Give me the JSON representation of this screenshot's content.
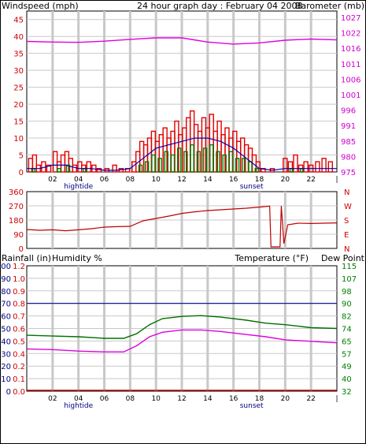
{
  "header": {
    "left_label": "Windspeed (mph)",
    "title": "24 hour graph day : February 04 2008",
    "right_label": "Barometer (mb)"
  },
  "colors": {
    "wind": "#e00000",
    "gust": "#e00000",
    "avg_wind": "#007f00",
    "wind_line": "#0000b0",
    "barometer": "#e000e0",
    "direction": "#c00000",
    "temperature": "#007000",
    "dewpoint": "#e000e0",
    "humidity": "#000090",
    "rain": "#c00000",
    "grid": "#c8c8c8",
    "axis_left_red": "#d00000",
    "axis_right_magenta": "#d000d0",
    "axis_right_green": "#008000"
  },
  "x_axis": {
    "tick_labels": [
      "02",
      "04",
      "06",
      "08",
      "10",
      "12",
      "14",
      "16",
      "18",
      "20",
      "22",
      "|"
    ],
    "annotations": [
      {
        "label": "hightide",
        "hour": 4
      },
      {
        "label": "sunset",
        "hour": 17.4
      }
    ]
  },
  "chart_data": [
    {
      "type": "bar",
      "name": "wind-barometer",
      "left_axis_title": "Windspeed (mph)",
      "right_axis_title": "Barometer (mb)",
      "left_ticks": [
        0,
        5,
        10,
        15,
        20,
        25,
        30,
        35,
        40,
        45
      ],
      "right_ticks": [
        975,
        980,
        985,
        991,
        996,
        1001,
        1006,
        1011,
        1016,
        1022,
        1027
      ],
      "ylim_left": [
        0,
        47.5
      ],
      "ylim_right": [
        975,
        1029
      ],
      "x_range_hours": [
        0,
        24
      ],
      "wind_peaks": [
        {
          "h": 0.3,
          "v": 4
        },
        {
          "h": 0.6,
          "v": 5
        },
        {
          "h": 0.9,
          "v": 2
        },
        {
          "h": 1.3,
          "v": 3
        },
        {
          "h": 1.7,
          "v": 2
        },
        {
          "h": 2.2,
          "v": 6
        },
        {
          "h": 2.5,
          "v": 3
        },
        {
          "h": 2.8,
          "v": 5
        },
        {
          "h": 3.1,
          "v": 6
        },
        {
          "h": 3.4,
          "v": 4
        },
        {
          "h": 3.7,
          "v": 2
        },
        {
          "h": 4.1,
          "v": 3
        },
        {
          "h": 4.4,
          "v": 2
        },
        {
          "h": 4.8,
          "v": 3
        },
        {
          "h": 5.2,
          "v": 2
        },
        {
          "h": 5.6,
          "v": 1
        },
        {
          "h": 6.2,
          "v": 1
        },
        {
          "h": 6.8,
          "v": 2
        },
        {
          "h": 7.3,
          "v": 1
        },
        {
          "h": 7.8,
          "v": 1
        },
        {
          "h": 8.3,
          "v": 3
        },
        {
          "h": 8.6,
          "v": 6
        },
        {
          "h": 8.9,
          "v": 9
        },
        {
          "h": 9.2,
          "v": 8
        },
        {
          "h": 9.5,
          "v": 10
        },
        {
          "h": 9.8,
          "v": 12
        },
        {
          "h": 10.1,
          "v": 9
        },
        {
          "h": 10.4,
          "v": 11
        },
        {
          "h": 10.7,
          "v": 13
        },
        {
          "h": 11.0,
          "v": 10
        },
        {
          "h": 11.3,
          "v": 12
        },
        {
          "h": 11.6,
          "v": 15
        },
        {
          "h": 11.9,
          "v": 11
        },
        {
          "h": 12.2,
          "v": 13
        },
        {
          "h": 12.5,
          "v": 16
        },
        {
          "h": 12.8,
          "v": 18
        },
        {
          "h": 13.1,
          "v": 14
        },
        {
          "h": 13.4,
          "v": 12
        },
        {
          "h": 13.7,
          "v": 16
        },
        {
          "h": 14.0,
          "v": 13
        },
        {
          "h": 14.3,
          "v": 17
        },
        {
          "h": 14.6,
          "v": 12
        },
        {
          "h": 14.9,
          "v": 15
        },
        {
          "h": 15.2,
          "v": 11
        },
        {
          "h": 15.5,
          "v": 13
        },
        {
          "h": 15.8,
          "v": 10
        },
        {
          "h": 16.1,
          "v": 12
        },
        {
          "h": 16.4,
          "v": 9
        },
        {
          "h": 16.7,
          "v": 10
        },
        {
          "h": 17.0,
          "v": 8
        },
        {
          "h": 17.3,
          "v": 7
        },
        {
          "h": 17.6,
          "v": 5
        },
        {
          "h": 17.9,
          "v": 3
        },
        {
          "h": 18.3,
          "v": 1
        },
        {
          "h": 19.0,
          "v": 1
        },
        {
          "h": 20.0,
          "v": 4
        },
        {
          "h": 20.4,
          "v": 3
        },
        {
          "h": 20.8,
          "v": 5
        },
        {
          "h": 21.2,
          "v": 2
        },
        {
          "h": 21.6,
          "v": 3
        },
        {
          "h": 22.0,
          "v": 2
        },
        {
          "h": 22.5,
          "v": 3
        },
        {
          "h": 23.0,
          "v": 4
        },
        {
          "h": 23.5,
          "v": 3
        }
      ],
      "avg_wind": [
        {
          "h": 0.5,
          "v": 1
        },
        {
          "h": 2.5,
          "v": 1
        },
        {
          "h": 3.2,
          "v": 2
        },
        {
          "h": 4.5,
          "v": 1
        },
        {
          "h": 8.8,
          "v": 2
        },
        {
          "h": 9.3,
          "v": 3
        },
        {
          "h": 9.8,
          "v": 5
        },
        {
          "h": 10.3,
          "v": 4
        },
        {
          "h": 10.8,
          "v": 6
        },
        {
          "h": 11.3,
          "v": 5
        },
        {
          "h": 11.8,
          "v": 7
        },
        {
          "h": 12.3,
          "v": 6
        },
        {
          "h": 12.8,
          "v": 8
        },
        {
          "h": 13.3,
          "v": 6
        },
        {
          "h": 13.8,
          "v": 7
        },
        {
          "h": 14.3,
          "v": 8
        },
        {
          "h": 14.8,
          "v": 6
        },
        {
          "h": 15.3,
          "v": 5
        },
        {
          "h": 15.8,
          "v": 6
        },
        {
          "h": 16.3,
          "v": 4
        },
        {
          "h": 16.8,
          "v": 4
        },
        {
          "h": 17.3,
          "v": 3
        },
        {
          "h": 17.8,
          "v": 1
        },
        {
          "h": 20.5,
          "v": 1
        },
        {
          "h": 21.3,
          "v": 1
        }
      ],
      "wind_line": [
        {
          "h": 0,
          "v": 1
        },
        {
          "h": 1,
          "v": 1
        },
        {
          "h": 2,
          "v": 2
        },
        {
          "h": 3,
          "v": 2
        },
        {
          "h": 4,
          "v": 1
        },
        {
          "h": 5,
          "v": 1
        },
        {
          "h": 6,
          "v": 0.5
        },
        {
          "h": 7,
          "v": 0.5
        },
        {
          "h": 8,
          "v": 1
        },
        {
          "h": 9,
          "v": 4
        },
        {
          "h": 10,
          "v": 7
        },
        {
          "h": 11,
          "v": 8
        },
        {
          "h": 12,
          "v": 9
        },
        {
          "h": 13,
          "v": 10
        },
        {
          "h": 14,
          "v": 10
        },
        {
          "h": 15,
          "v": 9
        },
        {
          "h": 16,
          "v": 7
        },
        {
          "h": 17,
          "v": 4
        },
        {
          "h": 18,
          "v": 1
        },
        {
          "h": 19,
          "v": 0.5
        },
        {
          "h": 20,
          "v": 1
        },
        {
          "h": 21,
          "v": 1
        },
        {
          "h": 22,
          "v": 1
        },
        {
          "h": 23,
          "v": 1
        },
        {
          "h": 24,
          "v": 1
        }
      ],
      "barometer": [
        {
          "h": 0,
          "v": 1018.8
        },
        {
          "h": 2,
          "v": 1018.6
        },
        {
          "h": 4,
          "v": 1018.5
        },
        {
          "h": 6,
          "v": 1018.9
        },
        {
          "h": 8,
          "v": 1019.5
        },
        {
          "h": 10,
          "v": 1020.0
        },
        {
          "h": 12,
          "v": 1020.0
        },
        {
          "h": 14,
          "v": 1018.6
        },
        {
          "h": 16,
          "v": 1017.9
        },
        {
          "h": 18,
          "v": 1018.3
        },
        {
          "h": 20,
          "v": 1019.2
        },
        {
          "h": 22,
          "v": 1019.6
        },
        {
          "h": 24,
          "v": 1019.3
        }
      ]
    },
    {
      "type": "line",
      "name": "wind-direction",
      "left_ticks": [
        0,
        90,
        180,
        270,
        360
      ],
      "right_ticks": [
        "N",
        "W",
        "S",
        "E",
        "N"
      ],
      "ylim": [
        0,
        360
      ],
      "direction": [
        {
          "h": 0,
          "v": 120
        },
        {
          "h": 1,
          "v": 115
        },
        {
          "h": 2,
          "v": 118
        },
        {
          "h": 3,
          "v": 112
        },
        {
          "h": 4,
          "v": 118
        },
        {
          "h": 5,
          "v": 125
        },
        {
          "h": 6,
          "v": 135
        },
        {
          "h": 7,
          "v": 138
        },
        {
          "h": 8,
          "v": 140
        },
        {
          "h": 9,
          "v": 175
        },
        {
          "h": 10,
          "v": 190
        },
        {
          "h": 11,
          "v": 205
        },
        {
          "h": 12,
          "v": 222
        },
        {
          "h": 13,
          "v": 232
        },
        {
          "h": 14,
          "v": 240
        },
        {
          "h": 15,
          "v": 245
        },
        {
          "h": 16,
          "v": 250
        },
        {
          "h": 17,
          "v": 255
        },
        {
          "h": 18,
          "v": 262
        },
        {
          "h": 18.8,
          "v": 268
        },
        {
          "h": 18.9,
          "v": 10
        },
        {
          "h": 19.6,
          "v": 10
        },
        {
          "h": 19.7,
          "v": 270
        },
        {
          "h": 19.9,
          "v": 30
        },
        {
          "h": 20.2,
          "v": 150
        },
        {
          "h": 21,
          "v": 160
        },
        {
          "h": 22,
          "v": 158
        },
        {
          "h": 23,
          "v": 160
        },
        {
          "h": 24,
          "v": 162
        }
      ]
    },
    {
      "type": "line",
      "name": "temp-humidity",
      "left_axis_title": "Rainfall (in)",
      "left_axis_title_2": "Humidity %",
      "right_axis_title": "Temperature (°F)",
      "right_axis_title_2": "Dew Point",
      "humidity_ticks": [
        0,
        10,
        20,
        30,
        40,
        50,
        60,
        70,
        80,
        90,
        100
      ],
      "rain_ticks": [
        "0.0",
        "0.1",
        "0.2",
        "0.4",
        "0.5",
        "0.6",
        "0.7",
        "0.8",
        "0.9",
        "1.0",
        "1.2"
      ],
      "temp_ticks": [
        32,
        40,
        49,
        57,
        65,
        74,
        82,
        90,
        98,
        107,
        115
      ],
      "ylim_humidity": [
        0,
        100
      ],
      "ylim_temp": [
        32,
        115
      ],
      "humidity_value": 70,
      "rainfall_value": 0,
      "temperature": [
        {
          "h": 0,
          "v": 69
        },
        {
          "h": 2,
          "v": 68.5
        },
        {
          "h": 4,
          "v": 68
        },
        {
          "h": 6,
          "v": 67
        },
        {
          "h": 7.5,
          "v": 67
        },
        {
          "h": 8.5,
          "v": 70
        },
        {
          "h": 9.5,
          "v": 76
        },
        {
          "h": 10.5,
          "v": 80
        },
        {
          "h": 12,
          "v": 81.5
        },
        {
          "h": 13.5,
          "v": 82
        },
        {
          "h": 15,
          "v": 81
        },
        {
          "h": 17,
          "v": 79
        },
        {
          "h": 18.5,
          "v": 77
        },
        {
          "h": 20,
          "v": 76
        },
        {
          "h": 22,
          "v": 74
        },
        {
          "h": 24,
          "v": 73.5
        }
      ],
      "dewpoint": [
        {
          "h": 0,
          "v": 60
        },
        {
          "h": 2,
          "v": 59.5
        },
        {
          "h": 4,
          "v": 58.5
        },
        {
          "h": 6,
          "v": 58
        },
        {
          "h": 7.5,
          "v": 58
        },
        {
          "h": 8.5,
          "v": 62
        },
        {
          "h": 9.5,
          "v": 68
        },
        {
          "h": 10.5,
          "v": 71
        },
        {
          "h": 12,
          "v": 72.5
        },
        {
          "h": 13.5,
          "v": 72.5
        },
        {
          "h": 15,
          "v": 71.5
        },
        {
          "h": 17,
          "v": 69.5
        },
        {
          "h": 18.5,
          "v": 68
        },
        {
          "h": 20,
          "v": 66
        },
        {
          "h": 22,
          "v": 65
        },
        {
          "h": 24,
          "v": 64
        }
      ]
    }
  ]
}
